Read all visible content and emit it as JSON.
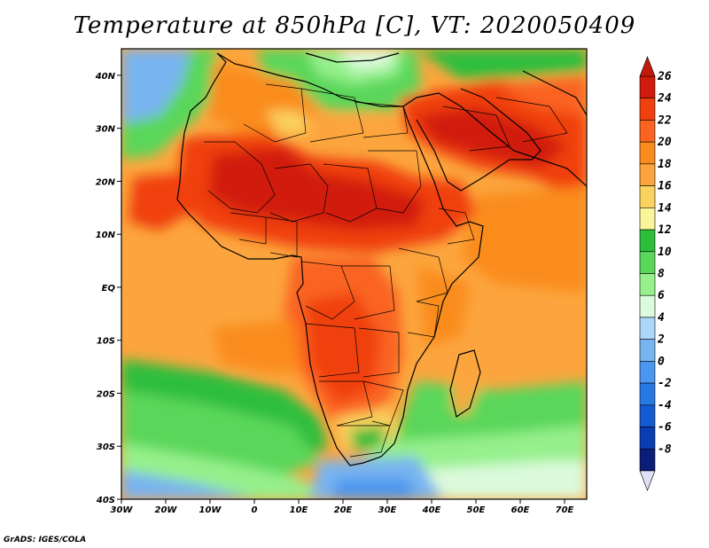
{
  "title": "Temperature at 850hPa [C], VT: 2020050409",
  "footer": "GrADS: IGES/COLA",
  "map": {
    "projection": "latlon",
    "lon_range": [
      -30,
      75
    ],
    "lat_range": [
      -40,
      45
    ],
    "lon_tick_labels": [
      "30W",
      "20W",
      "10W",
      "0",
      "10E",
      "20E",
      "30E",
      "40E",
      "50E",
      "60E",
      "70E"
    ],
    "lat_tick_labels": [
      "40S",
      "30S",
      "20S",
      "10S",
      "EQ",
      "10N",
      "20N",
      "30N",
      "40N"
    ],
    "region": "Africa, Arabian Peninsula, southwest Asia",
    "field": "850hPa temperature",
    "ocean_color": "#FFA040"
  },
  "colorbar": {
    "orientation": "vertical",
    "labels": [
      "26",
      "24",
      "22",
      "20",
      "18",
      "16",
      "14",
      "12",
      "10",
      "8",
      "6",
      "4",
      "2",
      "0",
      "-2",
      "-4",
      "-6",
      "-8"
    ],
    "colors": [
      "#D11A0C",
      "#F0400F",
      "#FA6420",
      "#FA8C1E",
      "#FCA53E",
      "#FAD25F",
      "#FAF49B",
      "#2DBE3C",
      "#5AD75A",
      "#96F08C",
      "#DCFADC",
      "#AAD7FA",
      "#78B4F0",
      "#4B96F0",
      "#2878E6",
      "#145AD2",
      "#0A3CB4",
      "#0A1E78"
    ],
    "extend": "both"
  }
}
